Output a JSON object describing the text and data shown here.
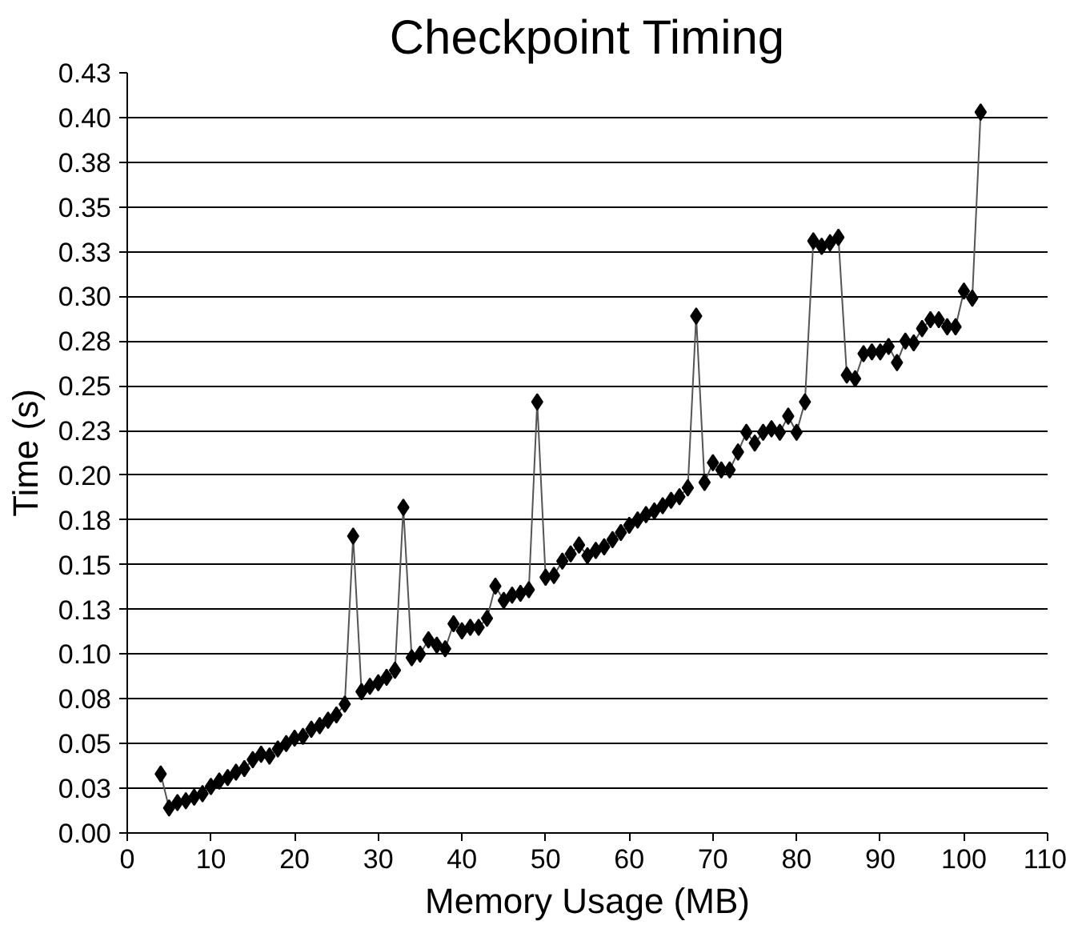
{
  "chart_data": {
    "type": "line",
    "title": "Checkpoint Timing",
    "xlabel": "Memory Usage (MB)",
    "ylabel": "Time (s)",
    "x": [
      4,
      5,
      6,
      7,
      8,
      9,
      10,
      11,
      12,
      13,
      14,
      15,
      16,
      17,
      18,
      19,
      20,
      21,
      22,
      23,
      24,
      25,
      26,
      27,
      28,
      29,
      30,
      31,
      32,
      33,
      34,
      35,
      36,
      37,
      38,
      39,
      40,
      41,
      42,
      43,
      44,
      45,
      46,
      47,
      48,
      49,
      50,
      51,
      52,
      53,
      54,
      55,
      56,
      57,
      58,
      59,
      60,
      61,
      62,
      63,
      64,
      65,
      66,
      67,
      68,
      69,
      70,
      71,
      72,
      73,
      74,
      75,
      76,
      77,
      78,
      79,
      80,
      81,
      82,
      83,
      84,
      85,
      86,
      87,
      88,
      89,
      90,
      91,
      92,
      93,
      94,
      95,
      96,
      97,
      98,
      99,
      100,
      101,
      102
    ],
    "series": [
      {
        "color": "#000000",
        "values": [
          0.033,
          0.014,
          0.017,
          0.018,
          0.02,
          0.022,
          0.026,
          0.029,
          0.031,
          0.034,
          0.036,
          0.041,
          0.044,
          0.043,
          0.047,
          0.05,
          0.053,
          0.054,
          0.058,
          0.06,
          0.063,
          0.066,
          0.072,
          0.166,
          0.079,
          0.082,
          0.084,
          0.087,
          0.091,
          0.182,
          0.098,
          0.1,
          0.108,
          0.105,
          0.103,
          0.117,
          0.113,
          0.115,
          0.115,
          0.12,
          0.138,
          0.13,
          0.133,
          0.134,
          0.136,
          0.241,
          0.143,
          0.144,
          0.152,
          0.156,
          0.161,
          0.155,
          0.158,
          0.16,
          0.164,
          0.168,
          0.172,
          0.175,
          0.178,
          0.18,
          0.183,
          0.186,
          0.188,
          0.193,
          0.289,
          0.196,
          0.207,
          0.203,
          0.203,
          0.213,
          0.224,
          0.218,
          0.224,
          0.226,
          0.224,
          0.233,
          0.224,
          0.241,
          0.331,
          0.328,
          0.33,
          0.333,
          0.256,
          0.254,
          0.268,
          0.269,
          0.269,
          0.272,
          0.263,
          0.275,
          0.274,
          0.282,
          0.287,
          0.287,
          0.283,
          0.283,
          0.303,
          0.299,
          0.403
        ]
      }
    ],
    "xlim": [
      0,
      110
    ],
    "xticks": [
      0,
      10,
      20,
      30,
      40,
      50,
      60,
      70,
      80,
      90,
      100,
      110
    ],
    "ylim": [
      0,
      0.425
    ],
    "yticks": [
      {
        "value": 0,
        "label": "0.00"
      },
      {
        "value": 0.025,
        "label": "0.03"
      },
      {
        "value": 0.05,
        "label": "0.05"
      },
      {
        "value": 0.075,
        "label": "0.08"
      },
      {
        "value": 0.1,
        "label": "0.10"
      },
      {
        "value": 0.125,
        "label": "0.13"
      },
      {
        "value": 0.15,
        "label": "0.15"
      },
      {
        "value": 0.175,
        "label": "0.18"
      },
      {
        "value": 0.2,
        "label": "0.20"
      },
      {
        "value": 0.225,
        "label": "0.23"
      },
      {
        "value": 0.25,
        "label": "0.25"
      },
      {
        "value": 0.275,
        "label": "0.28"
      },
      {
        "value": 0.3,
        "label": "0.30"
      },
      {
        "value": 0.325,
        "label": "0.33"
      },
      {
        "value": 0.35,
        "label": "0.35"
      },
      {
        "value": 0.375,
        "label": "0.38"
      },
      {
        "value": 0.4,
        "label": "0.40"
      },
      {
        "value": 0.425,
        "label": "0.43"
      }
    ],
    "grid": "y",
    "marker": "diamond",
    "line_style": "solid"
  }
}
